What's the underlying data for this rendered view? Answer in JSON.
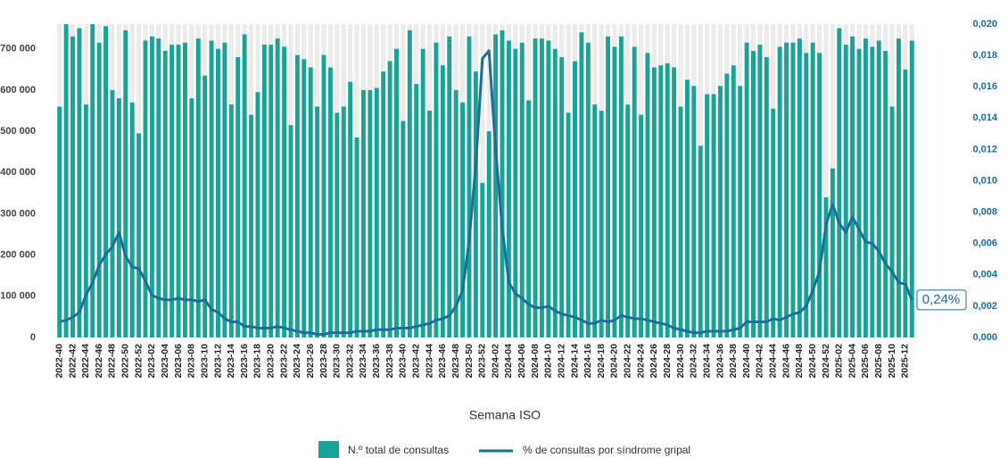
{
  "chart_data": {
    "type": "bar",
    "x_label": "Semana ISO",
    "categories": [
      "2022-40",
      null,
      "2022-42",
      null,
      "2022-44",
      null,
      "2022-46",
      null,
      "2022-48",
      null,
      "2022-50",
      null,
      "2022-52",
      null,
      "2023-02",
      null,
      "2023-04",
      null,
      "2023-06",
      null,
      "2023-08",
      null,
      "2023-10",
      null,
      "2023-12",
      null,
      "2023-14",
      null,
      "2023-16",
      null,
      "2023-18",
      null,
      "2023-20",
      null,
      "2023-22",
      null,
      "2023-24",
      null,
      "2023-26",
      null,
      "2023-28",
      null,
      "2023-30",
      null,
      "2023-32",
      null,
      "2023-34",
      null,
      "2023-36",
      null,
      "2023-38",
      null,
      "2023-40",
      null,
      "2023-42",
      null,
      "2023-44",
      null,
      "2023-46",
      null,
      "2023-48",
      null,
      "2023-50",
      null,
      "2023-52",
      null,
      "2024-02",
      null,
      "2024-04",
      null,
      "2024-06",
      null,
      "2024-08",
      null,
      "2024-10",
      null,
      "2024-12",
      null,
      "2024-14",
      null,
      "2024-16",
      null,
      "2024-18",
      null,
      "2024-20",
      null,
      "2024-22",
      null,
      "2024-24",
      null,
      "2024-26",
      null,
      "2024-28",
      null,
      "2024-30",
      null,
      "2024-32",
      null,
      "2024-34",
      null,
      "2024-36",
      null,
      "2024-38",
      null,
      "2024-40",
      null,
      "2024-42",
      null,
      "2024-44",
      null,
      "2024-46",
      null,
      "2024-48",
      null,
      "2024-50",
      null,
      "2024-52",
      null,
      "2025-02",
      null,
      "2025-04",
      null,
      "2025-06",
      null,
      "2025-08",
      null,
      "2025-10",
      null,
      "2025-12",
      null
    ],
    "series": [
      {
        "name": "N.º total de consultas",
        "type": "bar",
        "color": "#17a397",
        "values": [
          560000,
          760000,
          730000,
          750000,
          565000,
          760000,
          715000,
          755000,
          600000,
          580000,
          745000,
          570000,
          495000,
          720000,
          730000,
          725000,
          695000,
          710000,
          710000,
          715000,
          580000,
          725000,
          635000,
          720000,
          700000,
          715000,
          565000,
          680000,
          735000,
          540000,
          595000,
          710000,
          710000,
          725000,
          705000,
          515000,
          685000,
          675000,
          655000,
          560000,
          685000,
          655000,
          545000,
          560000,
          620000,
          485000,
          600000,
          600000,
          605000,
          645000,
          670000,
          700000,
          525000,
          745000,
          615000,
          700000,
          550000,
          715000,
          660000,
          730000,
          600000,
          570000,
          730000,
          645000,
          375000,
          500000,
          735000,
          745000,
          720000,
          700000,
          715000,
          575000,
          725000,
          725000,
          720000,
          700000,
          680000,
          545000,
          670000,
          740000,
          715000,
          565000,
          550000,
          730000,
          705000,
          730000,
          565000,
          705000,
          540000,
          690000,
          655000,
          660000,
          665000,
          655000,
          560000,
          625000,
          610000,
          465000,
          590000,
          590000,
          610000,
          640000,
          660000,
          610000,
          715000,
          695000,
          710000,
          680000,
          555000,
          705000,
          715000,
          715000,
          725000,
          690000,
          715000,
          690000,
          340000,
          410000,
          750000,
          710000,
          730000,
          700000,
          725000,
          705000,
          720000,
          695000,
          560000,
          725000,
          650000,
          720000
        ]
      },
      {
        "name": "% de consultas por síndrome gripal",
        "type": "line",
        "axis": "y2",
        "color": "#1a6e99",
        "values": [
          0.001,
          0.0011,
          0.0013,
          0.0016,
          0.0027,
          0.0035,
          0.0046,
          0.0053,
          0.0058,
          0.0067,
          0.0052,
          0.0045,
          0.0044,
          0.0036,
          0.0027,
          0.0025,
          0.0024,
          0.0024,
          0.0025,
          0.0024,
          0.0024,
          0.0023,
          0.0024,
          0.0018,
          0.0016,
          0.0012,
          0.001,
          0.001,
          0.0007,
          0.0007,
          0.0006,
          0.0006,
          0.0006,
          0.0007,
          0.0006,
          0.0005,
          0.0004,
          0.0003,
          0.0003,
          0.0002,
          0.0002,
          0.0003,
          0.0003,
          0.0003,
          0.0003,
          0.0004,
          0.0004,
          0.0004,
          0.0005,
          0.0005,
          0.0005,
          0.0006,
          0.0006,
          0.0006,
          0.0007,
          0.0008,
          0.0009,
          0.0011,
          0.0012,
          0.0014,
          0.002,
          0.003,
          0.0062,
          0.011,
          0.0178,
          0.0183,
          0.012,
          0.007,
          0.0035,
          0.0028,
          0.0025,
          0.0021,
          0.0019,
          0.0019,
          0.002,
          0.0017,
          0.0015,
          0.0014,
          0.0013,
          0.0011,
          0.0009,
          0.0009,
          0.0011,
          0.001,
          0.0011,
          0.0014,
          0.0013,
          0.0012,
          0.0012,
          0.0011,
          0.001,
          0.0009,
          0.0008,
          0.0006,
          0.0005,
          0.0004,
          0.0003,
          0.0003,
          0.0004,
          0.0004,
          0.0004,
          0.0004,
          0.0005,
          0.0006,
          0.001,
          0.001,
          0.001,
          0.001,
          0.0012,
          0.0011,
          0.0013,
          0.0015,
          0.0016,
          0.002,
          0.003,
          0.0042,
          0.0072,
          0.0085,
          0.0073,
          0.0067,
          0.0077,
          0.0069,
          0.0061,
          0.006,
          0.0055,
          0.0047,
          0.0042,
          0.0035,
          0.0034,
          0.0024
        ]
      }
    ],
    "annotation": "0,24%",
    "ylim": [
      0,
      760000
    ],
    "yticks": [
      0,
      {
        "value": 100000,
        "label": "100 000"
      },
      {
        "value": 200000,
        "label": "200 000"
      },
      {
        "value": 300000,
        "label": "300 000"
      },
      {
        "value": 400000,
        "label": "400 000"
      },
      {
        "value": 500000,
        "label": "500 000"
      },
      {
        "value": 600000,
        "label": "600 000"
      },
      {
        "value": 700000,
        "label": "700 000"
      }
    ],
    "y2lim": [
      0,
      0.02
    ],
    "y2ticks": [
      {
        "value": 0,
        "label": "0,000"
      },
      {
        "value": 0.002,
        "label": "0,002"
      },
      {
        "value": 0.004,
        "label": "0,004"
      },
      {
        "value": 0.006,
        "label": "0,006"
      },
      {
        "value": 0.008,
        "label": "0,008"
      },
      {
        "value": 0.01,
        "label": "0,010"
      },
      {
        "value": 0.012,
        "label": "0,012"
      },
      {
        "value": 0.014,
        "label": "0,014"
      },
      {
        "value": 0.016,
        "label": "0,016"
      },
      {
        "value": 0.018,
        "label": "0,018"
      },
      {
        "value": 0.02,
        "label": "0,020"
      }
    ],
    "grid": true
  }
}
